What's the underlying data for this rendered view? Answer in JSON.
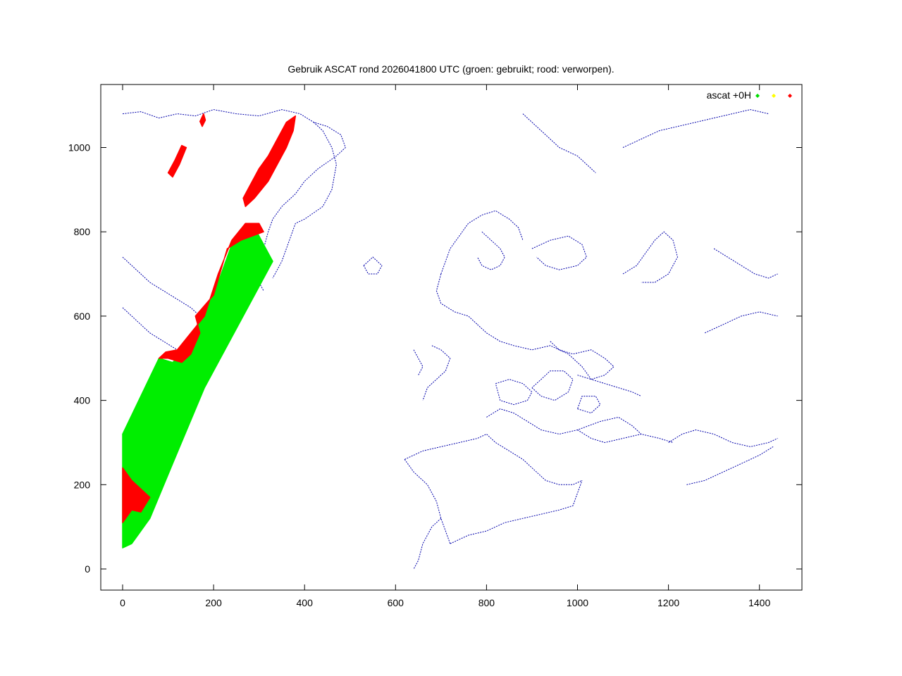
{
  "chart_data": {
    "type": "scatter",
    "title": "Gebruik ASCAT rond 2026041800 UTC (groen: gebruikt; rood: verworpen).",
    "xlabel": "",
    "ylabel": "",
    "xlim": [
      -50,
      1490
    ],
    "ylim": [
      -50,
      1150
    ],
    "x_ticks": [
      0,
      200,
      400,
      600,
      800,
      1000,
      1200,
      1400
    ],
    "y_ticks": [
      0,
      200,
      400,
      600,
      800,
      1000
    ],
    "grid": false,
    "legend": {
      "placement": "top-right",
      "label": "ascat +0H",
      "marker_colors": [
        "#00dd00",
        "#ffff00",
        "#ff0000"
      ]
    },
    "colors": {
      "used": "#00ee00",
      "rejected": "#ff0000",
      "coast": "#0000aa"
    },
    "series": [
      {
        "role": "used",
        "color": "#00ee00",
        "polygon": [
          [
            0,
            50
          ],
          [
            0,
            320
          ],
          [
            80,
            500
          ],
          [
            110,
            490
          ],
          [
            150,
            530
          ],
          [
            170,
            600
          ],
          [
            200,
            650
          ],
          [
            240,
            770
          ],
          [
            290,
            810
          ],
          [
            330,
            730
          ],
          [
            180,
            430
          ],
          [
            110,
            250
          ],
          [
            60,
            120
          ],
          [
            20,
            60
          ]
        ]
      },
      {
        "role": "rejected",
        "color": "#ff0000",
        "polygon": [
          [
            0,
            110
          ],
          [
            0,
            240
          ],
          [
            20,
            210
          ],
          [
            60,
            170
          ],
          [
            40,
            135
          ],
          [
            20,
            140
          ]
        ]
      },
      {
        "role": "rejected",
        "color": "#ff0000",
        "polygon": [
          [
            80,
            500
          ],
          [
            100,
            500
          ],
          [
            130,
            490
          ],
          [
            150,
            510
          ],
          [
            170,
            560
          ],
          [
            160,
            600
          ],
          [
            200,
            650
          ],
          [
            230,
            760
          ],
          [
            260,
            780
          ],
          [
            310,
            800
          ],
          [
            300,
            820
          ],
          [
            270,
            820
          ],
          [
            240,
            780
          ],
          [
            210,
            700
          ],
          [
            180,
            600
          ],
          [
            150,
            560
          ],
          [
            120,
            520
          ],
          [
            95,
            515
          ]
        ]
      },
      {
        "role": "rejected",
        "color": "#ff0000",
        "polygon": [
          [
            270,
            860
          ],
          [
            290,
            880
          ],
          [
            320,
            920
          ],
          [
            340,
            960
          ],
          [
            360,
            1000
          ],
          [
            375,
            1040
          ],
          [
            380,
            1075
          ],
          [
            360,
            1060
          ],
          [
            340,
            1020
          ],
          [
            320,
            980
          ],
          [
            300,
            950
          ],
          [
            280,
            910
          ],
          [
            265,
            880
          ]
        ]
      },
      {
        "role": "rejected",
        "color": "#ff0000",
        "polygon": [
          [
            110,
            930
          ],
          [
            125,
            960
          ],
          [
            140,
            1000
          ],
          [
            130,
            1005
          ],
          [
            115,
            970
          ],
          [
            100,
            940
          ]
        ]
      },
      {
        "role": "rejected",
        "color": "#ff0000",
        "polygon": [
          [
            175,
            1050
          ],
          [
            182,
            1065
          ],
          [
            178,
            1080
          ],
          [
            170,
            1062
          ]
        ]
      }
    ],
    "coastlines": [
      [
        [
          0,
          1080
        ],
        [
          40,
          1085
        ],
        [
          80,
          1070
        ],
        [
          120,
          1080
        ],
        [
          160,
          1075
        ],
        [
          200,
          1090
        ],
        [
          250,
          1080
        ],
        [
          300,
          1075
        ],
        [
          350,
          1090
        ],
        [
          390,
          1080
        ],
        [
          420,
          1060
        ],
        [
          450,
          1050
        ],
        [
          480,
          1030
        ],
        [
          490,
          1000
        ],
        [
          470,
          980
        ],
        [
          430,
          950
        ],
        [
          400,
          920
        ],
        [
          380,
          890
        ],
        [
          350,
          860
        ],
        [
          330,
          830
        ],
        [
          320,
          800
        ],
        [
          310,
          760
        ],
        [
          300,
          730
        ],
        [
          290,
          700
        ]
      ],
      [
        [
          420,
          1060
        ],
        [
          440,
          1040
        ],
        [
          460,
          1000
        ],
        [
          470,
          960
        ],
        [
          460,
          900
        ],
        [
          440,
          860
        ],
        [
          400,
          830
        ],
        [
          380,
          820
        ],
        [
          370,
          790
        ],
        [
          360,
          760
        ],
        [
          350,
          730
        ],
        [
          330,
          690
        ]
      ],
      [
        [
          0,
          740
        ],
        [
          20,
          720
        ],
        [
          40,
          700
        ],
        [
          60,
          680
        ],
        [
          90,
          660
        ],
        [
          120,
          640
        ],
        [
          150,
          620
        ],
        [
          170,
          600
        ]
      ],
      [
        [
          0,
          620
        ],
        [
          30,
          590
        ],
        [
          60,
          560
        ],
        [
          90,
          540
        ],
        [
          120,
          520
        ]
      ],
      [
        [
          290,
          700
        ],
        [
          300,
          680
        ],
        [
          310,
          660
        ]
      ],
      [
        [
          530,
          720
        ],
        [
          550,
          740
        ],
        [
          570,
          720
        ],
        [
          560,
          700
        ],
        [
          540,
          700
        ],
        [
          530,
          720
        ]
      ],
      [
        [
          700,
          700
        ],
        [
          710,
          730
        ],
        [
          720,
          760
        ],
        [
          740,
          790
        ],
        [
          760,
          820
        ],
        [
          790,
          840
        ],
        [
          820,
          850
        ],
        [
          850,
          830
        ],
        [
          870,
          810
        ],
        [
          880,
          780
        ]
      ],
      [
        [
          700,
          700
        ],
        [
          690,
          660
        ],
        [
          700,
          630
        ],
        [
          730,
          610
        ],
        [
          760,
          600
        ],
        [
          780,
          580
        ]
      ],
      [
        [
          790,
          800
        ],
        [
          810,
          780
        ],
        [
          830,
          760
        ],
        [
          840,
          740
        ],
        [
          830,
          720
        ],
        [
          810,
          710
        ],
        [
          790,
          720
        ],
        [
          780,
          740
        ]
      ],
      [
        [
          780,
          580
        ],
        [
          800,
          560
        ],
        [
          830,
          540
        ],
        [
          860,
          530
        ],
        [
          900,
          520
        ],
        [
          940,
          530
        ],
        [
          980,
          510
        ],
        [
          1010,
          480
        ],
        [
          1030,
          450
        ],
        [
          1060,
          440
        ],
        [
          1090,
          430
        ],
        [
          1120,
          420
        ],
        [
          1140,
          410
        ]
      ],
      [
        [
          680,
          530
        ],
        [
          700,
          520
        ],
        [
          720,
          500
        ],
        [
          710,
          470
        ],
        [
          690,
          450
        ],
        [
          670,
          430
        ],
        [
          660,
          400
        ]
      ],
      [
        [
          640,
          520
        ],
        [
          650,
          500
        ],
        [
          660,
          480
        ],
        [
          650,
          460
        ]
      ],
      [
        [
          620,
          260
        ],
        [
          660,
          280
        ],
        [
          700,
          290
        ],
        [
          740,
          300
        ],
        [
          780,
          310
        ],
        [
          800,
          320
        ],
        [
          820,
          300
        ],
        [
          850,
          280
        ],
        [
          880,
          260
        ],
        [
          900,
          240
        ],
        [
          930,
          210
        ],
        [
          960,
          200
        ],
        [
          990,
          200
        ],
        [
          1010,
          210
        ]
      ],
      [
        [
          620,
          260
        ],
        [
          640,
          230
        ],
        [
          670,
          200
        ],
        [
          690,
          160
        ],
        [
          700,
          120
        ],
        [
          710,
          90
        ],
        [
          720,
          60
        ]
      ],
      [
        [
          700,
          120
        ],
        [
          680,
          100
        ],
        [
          660,
          60
        ],
        [
          650,
          20
        ],
        [
          640,
          0
        ]
      ],
      [
        [
          720,
          60
        ],
        [
          760,
          80
        ],
        [
          800,
          90
        ],
        [
          840,
          110
        ],
        [
          880,
          120
        ],
        [
          920,
          130
        ],
        [
          960,
          140
        ],
        [
          990,
          150
        ],
        [
          1010,
          210
        ]
      ],
      [
        [
          800,
          360
        ],
        [
          830,
          380
        ],
        [
          860,
          370
        ],
        [
          890,
          350
        ],
        [
          920,
          330
        ],
        [
          960,
          320
        ],
        [
          1000,
          330
        ],
        [
          1050,
          350
        ],
        [
          1090,
          360
        ],
        [
          1120,
          340
        ],
        [
          1140,
          320
        ]
      ],
      [
        [
          940,
          540
        ],
        [
          960,
          520
        ],
        [
          990,
          510
        ],
        [
          1030,
          520
        ],
        [
          1060,
          500
        ],
        [
          1080,
          480
        ],
        [
          1060,
          460
        ],
        [
          1030,
          450
        ],
        [
          1000,
          460
        ]
      ],
      [
        [
          900,
          430
        ],
        [
          920,
          410
        ],
        [
          950,
          400
        ],
        [
          980,
          420
        ],
        [
          990,
          450
        ],
        [
          970,
          470
        ],
        [
          940,
          470
        ],
        [
          920,
          450
        ],
        [
          900,
          430
        ]
      ],
      [
        [
          1000,
          380
        ],
        [
          1030,
          370
        ],
        [
          1050,
          390
        ],
        [
          1040,
          410
        ],
        [
          1010,
          410
        ],
        [
          1000,
          380
        ]
      ],
      [
        [
          820,
          440
        ],
        [
          850,
          450
        ],
        [
          880,
          440
        ],
        [
          900,
          420
        ],
        [
          890,
          400
        ],
        [
          860,
          390
        ],
        [
          830,
          400
        ],
        [
          820,
          440
        ]
      ],
      [
        [
          900,
          760
        ],
        [
          940,
          780
        ],
        [
          980,
          790
        ],
        [
          1010,
          770
        ],
        [
          1020,
          740
        ],
        [
          1000,
          720
        ],
        [
          960,
          710
        ],
        [
          930,
          720
        ],
        [
          910,
          740
        ]
      ],
      [
        [
          1100,
          700
        ],
        [
          1130,
          720
        ],
        [
          1150,
          750
        ],
        [
          1170,
          780
        ],
        [
          1190,
          800
        ],
        [
          1210,
          780
        ],
        [
          1220,
          740
        ],
        [
          1200,
          700
        ],
        [
          1170,
          680
        ],
        [
          1140,
          680
        ]
      ],
      [
        [
          1100,
          1000
        ],
        [
          1140,
          1020
        ],
        [
          1180,
          1040
        ],
        [
          1220,
          1050
        ],
        [
          1260,
          1060
        ],
        [
          1300,
          1070
        ],
        [
          1340,
          1080
        ],
        [
          1380,
          1090
        ],
        [
          1420,
          1080
        ]
      ],
      [
        [
          880,
          1080
        ],
        [
          900,
          1060
        ],
        [
          920,
          1040
        ],
        [
          940,
          1020
        ],
        [
          960,
          1000
        ],
        [
          980,
          990
        ],
        [
          1000,
          980
        ],
        [
          1020,
          960
        ],
        [
          1040,
          940
        ]
      ],
      [
        [
          1300,
          760
        ],
        [
          1330,
          740
        ],
        [
          1360,
          720
        ],
        [
          1390,
          700
        ],
        [
          1420,
          690
        ],
        [
          1440,
          700
        ]
      ],
      [
        [
          1280,
          560
        ],
        [
          1320,
          580
        ],
        [
          1360,
          600
        ],
        [
          1400,
          610
        ],
        [
          1440,
          600
        ]
      ],
      [
        [
          1200,
          300
        ],
        [
          1230,
          320
        ],
        [
          1260,
          330
        ],
        [
          1300,
          320
        ],
        [
          1340,
          300
        ],
        [
          1380,
          290
        ],
        [
          1420,
          300
        ],
        [
          1440,
          310
        ]
      ],
      [
        [
          1240,
          200
        ],
        [
          1280,
          210
        ],
        [
          1320,
          230
        ],
        [
          1360,
          250
        ],
        [
          1400,
          270
        ],
        [
          1430,
          290
        ]
      ],
      [
        [
          1000,
          330
        ],
        [
          1030,
          310
        ],
        [
          1060,
          300
        ],
        [
          1100,
          310
        ],
        [
          1140,
          320
        ],
        [
          1180,
          310
        ],
        [
          1210,
          300
        ]
      ]
    ]
  }
}
